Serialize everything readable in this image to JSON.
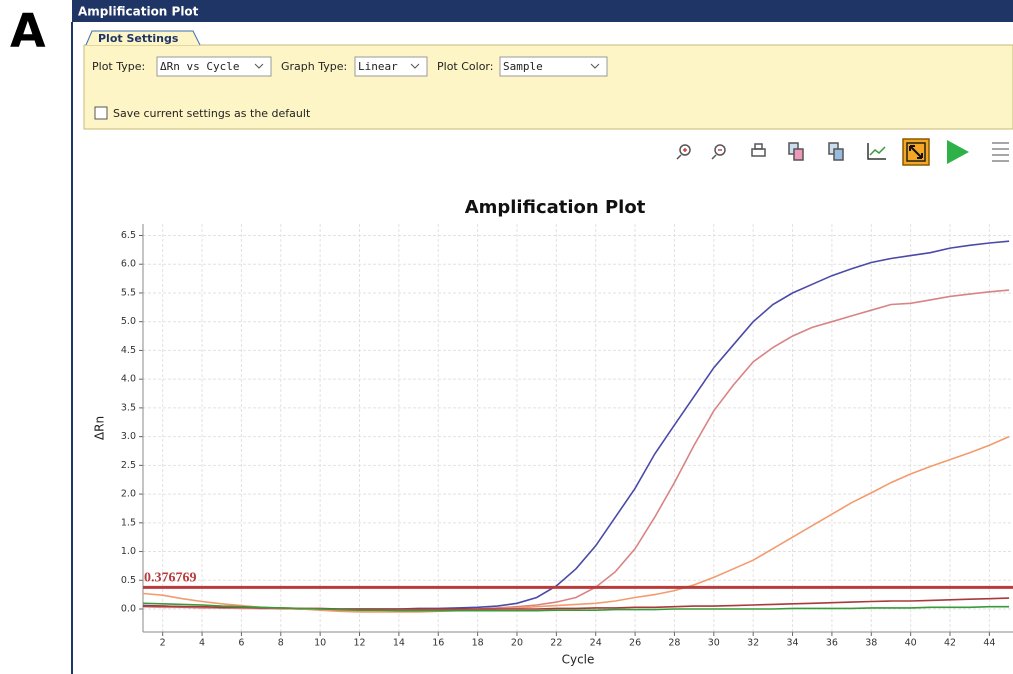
{
  "panel_label": "A",
  "window": {
    "title": "Amplification Plot"
  },
  "settings": {
    "tab": "Plot Settings",
    "plot_type": {
      "label": "Plot Type:",
      "value": "ΔRn vs Cycle"
    },
    "graph_type": {
      "label": "Graph Type:",
      "value": "Linear"
    },
    "plot_color": {
      "label": "Plot Color:",
      "value": "Sample"
    },
    "save_default": "Save current settings as the default"
  },
  "chart_data": {
    "type": "line",
    "title": "Amplification Plot",
    "x_label": "Cycle",
    "y_label": "ΔRn",
    "x": [
      1,
      2,
      3,
      4,
      5,
      6,
      7,
      8,
      9,
      10,
      11,
      12,
      13,
      14,
      15,
      16,
      17,
      18,
      19,
      20,
      21,
      22,
      23,
      24,
      25,
      26,
      27,
      28,
      29,
      30,
      31,
      32,
      33,
      34,
      35,
      36,
      37,
      38,
      39,
      40,
      41,
      42,
      43,
      44,
      45
    ],
    "series": [
      {
        "color": "#4a4aa8",
        "values": [
          0.06,
          0.05,
          0.04,
          0.03,
          0.02,
          0.02,
          0.01,
          0.01,
          0,
          0,
          0,
          0,
          0,
          0,
          0.01,
          0.01,
          0.02,
          0.03,
          0.05,
          0.1,
          0.2,
          0.4,
          0.7,
          1.1,
          1.6,
          2.1,
          2.7,
          3.2,
          3.7,
          4.2,
          4.6,
          5.0,
          5.3,
          5.5,
          5.65,
          5.8,
          5.92,
          6.03,
          6.1,
          6.15,
          6.2,
          6.28,
          6.33,
          6.37,
          6.4
        ]
      },
      {
        "color": "#d98484",
        "values": [
          0.04,
          0.03,
          0.03,
          0.02,
          0.02,
          0.01,
          0.01,
          0,
          0,
          0,
          -0.02,
          -0.03,
          -0.03,
          -0.03,
          -0.02,
          -0.02,
          -0.01,
          0,
          0.02,
          0.04,
          0.07,
          0.12,
          0.2,
          0.38,
          0.65,
          1.05,
          1.6,
          2.2,
          2.85,
          3.45,
          3.9,
          4.3,
          4.55,
          4.75,
          4.9,
          5.0,
          5.1,
          5.2,
          5.3,
          5.32,
          5.38,
          5.44,
          5.48,
          5.52,
          5.55
        ]
      },
      {
        "color": "#f29c6e",
        "values": [
          0.27,
          0.24,
          0.18,
          0.13,
          0.09,
          0.06,
          0.03,
          0.01,
          0,
          -0.02,
          -0.04,
          -0.05,
          -0.05,
          -0.05,
          -0.05,
          -0.04,
          -0.03,
          -0.02,
          0,
          0.02,
          0.04,
          0.06,
          0.08,
          0.1,
          0.14,
          0.2,
          0.25,
          0.32,
          0.42,
          0.55,
          0.7,
          0.85,
          1.05,
          1.25,
          1.45,
          1.65,
          1.85,
          2.02,
          2.2,
          2.35,
          2.48,
          2.6,
          2.72,
          2.85,
          3.0
        ]
      },
      {
        "color": "#a83a3a",
        "values": [
          0.05,
          0.05,
          0.04,
          0.04,
          0.03,
          0.03,
          0.02,
          0.02,
          0.01,
          0.01,
          0,
          0,
          0,
          0,
          0,
          0,
          0,
          0,
          0,
          0,
          0,
          0.01,
          0.01,
          0.02,
          0.02,
          0.03,
          0.03,
          0.04,
          0.05,
          0.05,
          0.06,
          0.07,
          0.08,
          0.09,
          0.1,
          0.11,
          0.12,
          0.13,
          0.14,
          0.14,
          0.15,
          0.16,
          0.17,
          0.18,
          0.19
        ]
      },
      {
        "color": "#3a9a3a",
        "values": [
          0.1,
          0.09,
          0.08,
          0.07,
          0.05,
          0.04,
          0.03,
          0.02,
          0.01,
          0,
          -0.01,
          -0.02,
          -0.02,
          -0.03,
          -0.03,
          -0.03,
          -0.03,
          -0.03,
          -0.03,
          -0.03,
          -0.03,
          -0.02,
          -0.02,
          -0.02,
          -0.01,
          -0.01,
          -0.01,
          0,
          0,
          0,
          0,
          0,
          0,
          0.01,
          0.01,
          0.01,
          0.01,
          0.02,
          0.02,
          0.02,
          0.03,
          0.03,
          0.03,
          0.04,
          0.04
        ]
      }
    ],
    "threshold": 0.376769,
    "threshold_color": "#b83c3c",
    "xlim": [
      1,
      45.2
    ],
    "xticks": [
      2,
      4,
      6,
      8,
      10,
      12,
      14,
      16,
      18,
      20,
      22,
      24,
      26,
      28,
      30,
      32,
      34,
      36,
      38,
      40,
      42,
      44
    ],
    "ylim": [
      -0.4,
      6.7
    ],
    "yticks": [
      {
        "value": 0,
        "label": "0.0"
      },
      0.5,
      {
        "value": 1,
        "label": "1.0"
      },
      1.5,
      {
        "value": 2,
        "label": "2.0"
      },
      2.5,
      {
        "value": 3,
        "label": "3.0"
      },
      3.5,
      {
        "value": 4,
        "label": "4.0"
      },
      4.5,
      {
        "value": 5,
        "label": "5.0"
      },
      5.5,
      {
        "value": 6,
        "label": "6.0"
      },
      6.5
    ],
    "grid": true
  }
}
